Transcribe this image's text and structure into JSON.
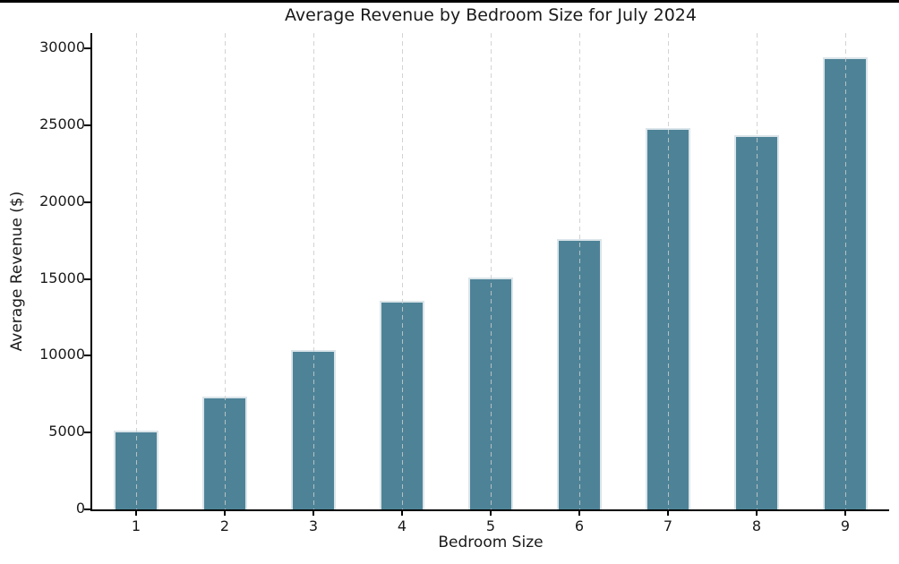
{
  "figure": {
    "background": "#ffffff",
    "top_border_color": "#000000"
  },
  "chart_data": {
    "type": "bar",
    "title": "Average Revenue by Bedroom Size for July 2024",
    "xlabel": "Bedroom Size",
    "ylabel": "Average Revenue ($)",
    "categories": [
      "1",
      "2",
      "3",
      "4",
      "5",
      "6",
      "7",
      "8",
      "9"
    ],
    "values": [
      5150,
      7350,
      10400,
      13550,
      15100,
      17600,
      24800,
      24350,
      29400
    ],
    "y_ticks": [
      0,
      5000,
      10000,
      15000,
      20000,
      25000,
      30000
    ],
    "ylim": [
      0,
      31000
    ],
    "grid": "vertical-dashed",
    "legend": "none",
    "colors": {
      "bar_fill": "#4e8397",
      "bar_edge": "#dbe5ea",
      "gridline": "#cbcbcb",
      "axis": "#000000",
      "text": "#1a1a1a"
    }
  }
}
